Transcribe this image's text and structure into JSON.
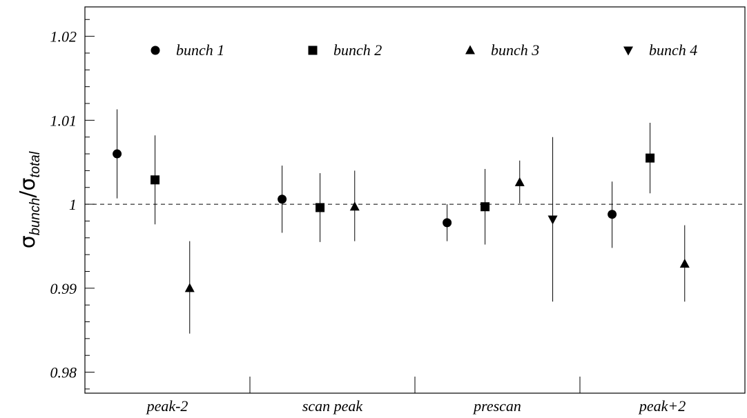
{
  "chart_data": {
    "type": "scatter",
    "title": "",
    "ylabel": {
      "sigma": "σ",
      "num_sub": "bunch",
      "slash": "/",
      "den_sub": "total"
    },
    "xlabel": "",
    "categories": [
      "peak-2",
      "scan peak",
      "prescan",
      "peak+2"
    ],
    "ylim": [
      0.9775,
      1.0235
    ],
    "yticks": [
      {
        "value": 0.98,
        "label": "0.98"
      },
      {
        "value": 0.99,
        "label": "0.99"
      },
      {
        "value": 1.0,
        "label": "1"
      },
      {
        "value": 1.01,
        "label": "1.01"
      },
      {
        "value": 1.02,
        "label": "1.02"
      }
    ],
    "reference_line": {
      "y": 1.0,
      "style": "dashed"
    },
    "grid": false,
    "legend": {
      "placement": "top"
    },
    "series": [
      {
        "name": "bunch 1",
        "marker": "circle",
        "points": [
          {
            "category": "peak-2",
            "y": 1.006,
            "err_low": 1.0007,
            "err_high": 1.0113
          },
          {
            "category": "scan peak",
            "y": 1.0006,
            "err_low": 0.9966,
            "err_high": 1.0046
          },
          {
            "category": "prescan",
            "y": 0.9978,
            "err_low": 0.9956,
            "err_high": 1.0
          },
          {
            "category": "peak+2",
            "y": 0.9988,
            "err_low": 0.9948,
            "err_high": 1.0027
          }
        ]
      },
      {
        "name": "bunch 2",
        "marker": "square",
        "points": [
          {
            "category": "peak-2",
            "y": 1.0029,
            "err_low": 0.9976,
            "err_high": 1.0082
          },
          {
            "category": "scan peak",
            "y": 0.9996,
            "err_low": 0.9955,
            "err_high": 1.0037
          },
          {
            "category": "prescan",
            "y": 0.9997,
            "err_low": 0.9952,
            "err_high": 1.0042
          },
          {
            "category": "peak+2",
            "y": 1.0055,
            "err_low": 1.0013,
            "err_high": 1.0097
          }
        ]
      },
      {
        "name": "bunch 3",
        "marker": "triangle-up",
        "points": [
          {
            "category": "peak-2",
            "y": 0.99,
            "err_low": 0.9846,
            "err_high": 0.9956
          },
          {
            "category": "scan peak",
            "y": 0.9997,
            "err_low": 0.9956,
            "err_high": 1.004
          },
          {
            "category": "prescan",
            "y": 1.0026,
            "err_low": 1.0001,
            "err_high": 1.0052
          },
          {
            "category": "peak+2",
            "y": 0.9929,
            "err_low": 0.9884,
            "err_high": 0.9975
          }
        ]
      },
      {
        "name": "bunch 4",
        "marker": "triangle-down",
        "points": [
          {
            "category": "prescan",
            "y": 0.9982,
            "err_low": 0.9884,
            "err_high": 1.008
          }
        ]
      }
    ]
  }
}
